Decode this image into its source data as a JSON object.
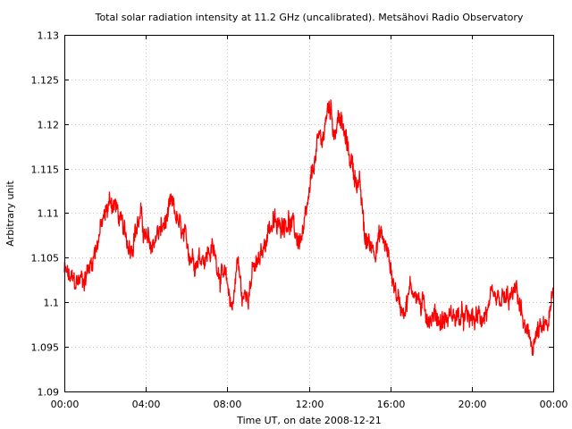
{
  "chart_data": {
    "type": "line",
    "title": "Total solar radiation intensity at 11.2 GHz (uncalibrated). Metsähovi Radio Observatory",
    "xlabel": "Time UT, on date 2008-12-21",
    "ylabel": "Arbitrary unit",
    "ylim": [
      1.09,
      1.13
    ],
    "xlim": [
      "00:00",
      "24:00"
    ],
    "yticks": [
      "1.09",
      "1.095",
      "1.1",
      "1.105",
      "1.11",
      "1.115",
      "1.12",
      "1.125",
      "1.13"
    ],
    "xticks": [
      "00:00",
      "04:00",
      "08:00",
      "12:00",
      "16:00",
      "20:00",
      "00:00"
    ],
    "grid": true,
    "series_color": "#ff0000",
    "series": [
      {
        "x": [
          "00:00",
          "00:15",
          "00:30",
          "00:45",
          "01:00",
          "01:15",
          "01:30",
          "01:45",
          "02:00",
          "02:15",
          "02:30",
          "02:45",
          "03:00",
          "03:15",
          "03:30",
          "03:45",
          "04:00",
          "04:15",
          "04:30",
          "04:45",
          "05:00",
          "05:15",
          "05:30",
          "05:45",
          "06:00",
          "06:15",
          "06:30",
          "06:45",
          "07:00",
          "07:15",
          "07:30",
          "07:45",
          "08:00",
          "08:15",
          "08:30",
          "08:45",
          "09:00",
          "09:15",
          "09:30",
          "09:45",
          "10:00",
          "10:15",
          "10:30",
          "10:45",
          "11:00",
          "11:15",
          "11:30",
          "11:45",
          "12:00",
          "12:15",
          "12:30",
          "12:45",
          "13:00",
          "13:15",
          "13:30",
          "13:45",
          "14:00",
          "14:15",
          "14:30",
          "14:45",
          "15:00",
          "15:15",
          "15:30",
          "15:45",
          "16:00",
          "16:15",
          "16:30",
          "16:45",
          "17:00",
          "17:15",
          "17:30",
          "17:45",
          "18:00",
          "18:15",
          "18:30",
          "18:45",
          "19:00",
          "19:15",
          "19:30",
          "19:45",
          "20:00",
          "20:15",
          "20:30",
          "20:45",
          "21:00",
          "21:15",
          "21:30",
          "21:45",
          "22:00",
          "22:15",
          "22:30",
          "22:45",
          "23:00",
          "23:15",
          "23:30",
          "23:45",
          "24:00"
        ],
        "values": [
          1.1035,
          1.1025,
          1.102,
          1.1025,
          1.103,
          1.104,
          1.106,
          1.108,
          1.1095,
          1.1115,
          1.111,
          1.109,
          1.107,
          1.1065,
          1.1085,
          1.1095,
          1.107,
          1.106,
          1.1075,
          1.108,
          1.109,
          1.1105,
          1.1095,
          1.1075,
          1.106,
          1.1055,
          1.105,
          1.1055,
          1.1055,
          1.106,
          1.1045,
          1.103,
          1.1015,
          1.0995,
          1.105,
          1.1,
          1.1015,
          1.1035,
          1.104,
          1.1055,
          1.1085,
          1.109,
          1.108,
          1.1095,
          1.1095,
          1.108,
          1.107,
          1.1075,
          1.111,
          1.1155,
          1.118,
          1.119,
          1.1225,
          1.1195,
          1.121,
          1.1185,
          1.1165,
          1.1145,
          1.113,
          1.107,
          1.1065,
          1.1065,
          1.1075,
          1.1065,
          1.104,
          1.1015,
          1.0995,
          1.1,
          1.1015,
          1.1015,
          1.0995,
          1.099,
          1.0985,
          1.0985,
          1.098,
          1.098,
          1.0985,
          1.0985,
          1.098,
          1.098,
          1.098,
          1.098,
          1.0985,
          1.099,
          1.0995,
          1.0995,
          1.1,
          1.1,
          1.1005,
          1.101,
          1.098,
          1.0955,
          1.0955,
          1.0965,
          1.0965,
          1.0975,
          1.1005
        ]
      }
    ]
  }
}
